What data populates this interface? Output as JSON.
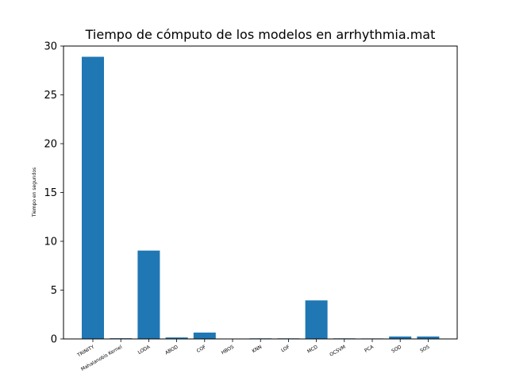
{
  "chart_data": {
    "type": "bar",
    "title": "Tiempo de cómputo de los modelos en arrhythmia.mat",
    "xlabel": "",
    "ylabel": "Tiempo en segundos",
    "ylim": [
      0,
      30
    ],
    "yticks": [
      0,
      5,
      10,
      15,
      20,
      25,
      30
    ],
    "categories": [
      "TRINITY",
      "Mahalanobis Kernel",
      "LODA",
      "ABOD",
      "COF",
      "HBOS",
      "KNN",
      "LOF",
      "MCD",
      "OCSVM",
      "PCA",
      "SOD",
      "SOS"
    ],
    "values": [
      28.9,
      0.07,
      9.05,
      0.15,
      0.65,
      0.02,
      0.06,
      0.06,
      3.95,
      0.06,
      0.05,
      0.25,
      0.25
    ],
    "bar_color": "#1f77b4",
    "grid": false
  }
}
